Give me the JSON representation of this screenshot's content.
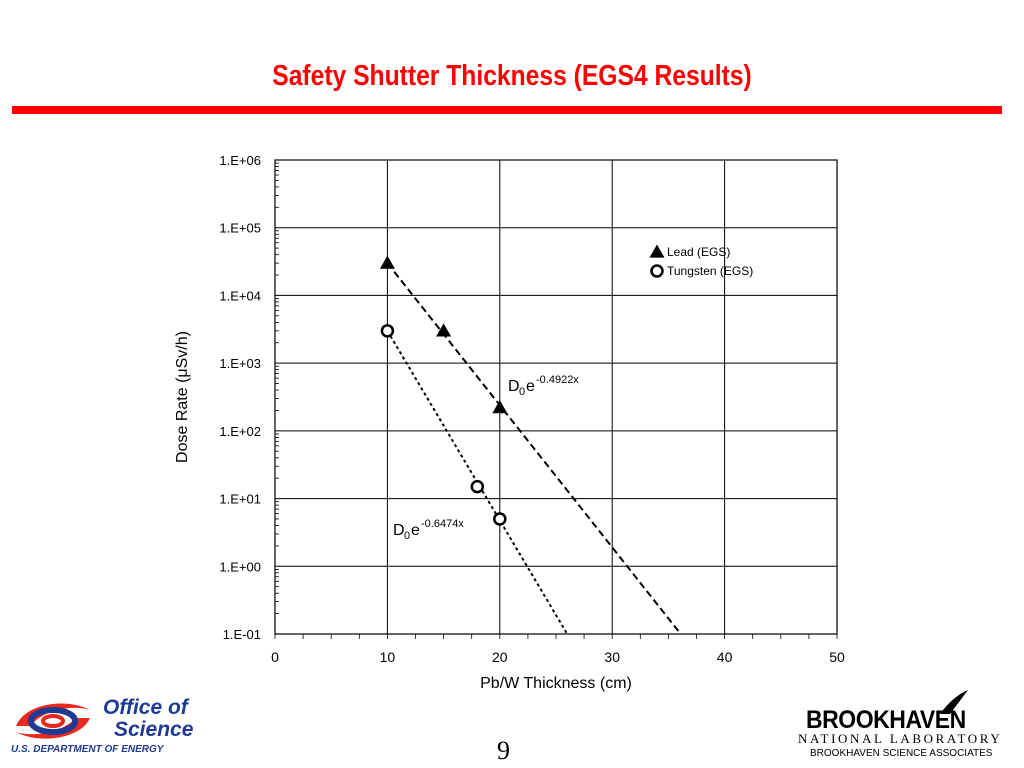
{
  "slide": {
    "title": "Safety Shutter Thickness (EGS4 Results)",
    "page_number": "9",
    "title_color": "#ff0000",
    "rule_color": "#ff0000"
  },
  "footer": {
    "left_logo": {
      "line1": "Office of",
      "line2": "Science",
      "department": "U.S. DEPARTMENT OF ENERGY",
      "text_color": "#1f3a93",
      "accent_color": "#e8291c",
      "icon": "office-of-science-emblem-icon"
    },
    "right_logo": {
      "name": "BROOKHAVEN",
      "subtitle": "NATIONAL LABORATORY",
      "associates": "BROOKHAVEN SCIENCE ASSOCIATES",
      "text_color": "#000000"
    }
  },
  "chart_data": {
    "type": "scatter",
    "title": "",
    "xlabel": "Pb/W Thickness (cm)",
    "ylabel": "Dose Rate (μSv/h)",
    "xlim": [
      0,
      50
    ],
    "ylim": [
      0.1,
      1000000
    ],
    "y_scale": "log",
    "grid": true,
    "legend_position": "top-right",
    "x_ticks": [
      "0",
      "10",
      "20",
      "30",
      "40",
      "50"
    ],
    "y_ticks": [
      "1.E-01",
      "1.E+00",
      "1.E+01",
      "1.E+02",
      "1.E+03",
      "1.E+04",
      "1.E+05",
      "1.E+06"
    ],
    "series": [
      {
        "name": "Lead (EGS)",
        "marker": "triangle",
        "color": "#000000",
        "points": [
          [
            10,
            30000
          ],
          [
            15,
            3000
          ],
          [
            20,
            220
          ]
        ],
        "fit": {
          "label": "D0e-0.4922x",
          "label_base": "D",
          "label_sub": "0",
          "label_e": "e",
          "label_exp": "-0.4922x",
          "style": "dashed",
          "line": [
            [
              10,
              30000
            ],
            [
              36.1,
              0.1
            ]
          ]
        }
      },
      {
        "name": "Tungsten (EGS)",
        "marker": "circle-open",
        "color": "#000000",
        "points": [
          [
            10,
            3000
          ],
          [
            18,
            15
          ],
          [
            20,
            5
          ]
        ],
        "fit": {
          "label": "D0e-0.6474x",
          "label_base": "D",
          "label_sub": "0",
          "label_e": "e",
          "label_exp": "-0.6474x",
          "style": "dotted",
          "line": [
            [
              10,
              3000
            ],
            [
              26,
              0.1
            ]
          ]
        }
      }
    ]
  }
}
